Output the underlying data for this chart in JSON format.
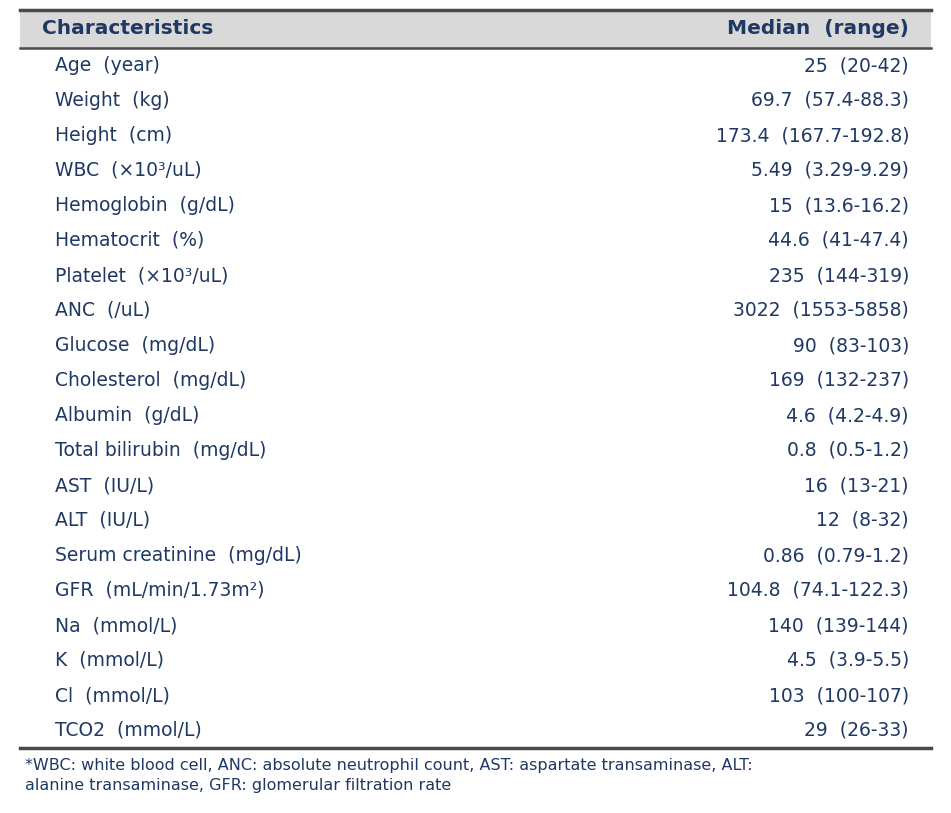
{
  "header": [
    "Characteristics",
    "Median  (range)"
  ],
  "rows": [
    [
      "Age  (year)",
      "25  (20-42)"
    ],
    [
      "Weight  (kg)",
      "69.7  (57.4-88.3)"
    ],
    [
      "Height  (cm)",
      "173.4  (167.7-192.8)"
    ],
    [
      "WBC  (×10³/uL)",
      "5.49  (3.29-9.29)"
    ],
    [
      "Hemoglobin  (g/dL)",
      "15  (13.6-16.2)"
    ],
    [
      "Hematocrit  (%)",
      "44.6  (41-47.4)"
    ],
    [
      "Platelet  (×10³/uL)",
      "235  (144-319)"
    ],
    [
      "ANC  (/uL)",
      "3022  (1553-5858)"
    ],
    [
      "Glucose  (mg/dL)",
      "90  (83-103)"
    ],
    [
      "Cholesterol  (mg/dL)",
      "169  (132-237)"
    ],
    [
      "Albumin  (g/dL)",
      "4.6  (4.2-4.9)"
    ],
    [
      "Total bilirubin  (mg/dL)",
      "0.8  (0.5-1.2)"
    ],
    [
      "AST  (IU/L)",
      "16  (13-21)"
    ],
    [
      "ALT  (IU/L)",
      "12  (8-32)"
    ],
    [
      "Serum creatinine  (mg/dL)",
      "0.86  (0.79-1.2)"
    ],
    [
      "GFR  (mL/min/1.73m²)",
      "104.8  (74.1-122.3)"
    ],
    [
      "Na  (mmol/L)",
      "140  (139-144)"
    ],
    [
      "K  (mmol/L)",
      "4.5  (3.9-5.5)"
    ],
    [
      "Cl  (mmol/L)",
      "103  (100-107)"
    ],
    [
      "TCO2  (mmol/L)",
      "29  (26-33)"
    ]
  ],
  "footnote_line1": "*WBC: white blood cell, ANC: absolute neutrophil count, AST: aspartate transaminase, ALT:",
  "footnote_line2": "alanine transaminase, GFR: glomerular filtration rate",
  "header_bg": "#d9d9d9",
  "table_bg": "#ffffff",
  "border_color": "#4a4a4a",
  "header_text_color": "#1f3864",
  "row_text_color": "#1f3864",
  "footnote_text_color": "#1f3864",
  "font_size": 13.5,
  "header_font_size": 14.5,
  "footnote_font_size": 11.5,
  "fig_width": 9.51,
  "fig_height": 8.13,
  "dpi": 100
}
